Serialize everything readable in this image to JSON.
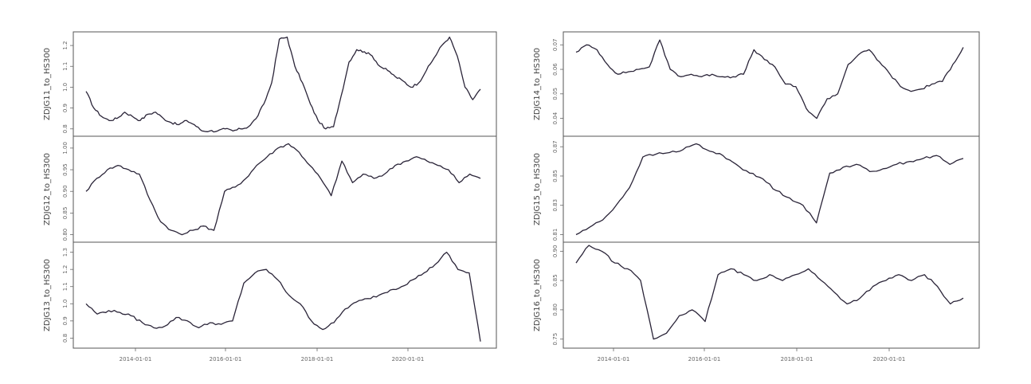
{
  "chart_data": {
    "type": "line",
    "x_ticks": [
      "2014-01-01",
      "2016-01-01",
      "2018-01-01",
      "2020-01-01"
    ],
    "x_range": [
      "2013-05-01",
      "2021-12-31"
    ],
    "columns": [
      {
        "panels": [
          {
            "ylabel": "ZDJG11_to_HS300",
            "y_ticks": [
              "0.8",
              "0.9",
              "1.0",
              "1.1",
              "1.2"
            ],
            "ylim": [
              0.78,
              1.25
            ],
            "values": [
              0.98,
              0.9,
              0.86,
              0.84,
              0.85,
              0.88,
              0.86,
              0.84,
              0.87,
              0.88,
              0.85,
              0.83,
              0.82,
              0.84,
              0.82,
              0.79,
              0.79,
              0.79,
              0.8,
              0.79,
              0.8,
              0.81,
              0.85,
              0.92,
              1.02,
              1.23,
              1.24,
              1.1,
              1.02,
              0.92,
              0.84,
              0.8,
              0.81,
              0.96,
              1.12,
              1.18,
              1.17,
              1.15,
              1.1,
              1.08,
              1.05,
              1.03,
              1.0,
              1.02,
              1.08,
              1.14,
              1.2,
              1.24,
              1.15,
              1.0,
              0.94,
              0.99
            ]
          },
          {
            "ylabel": "ZDJG12_to_HS300",
            "y_ticks": [
              "0.80",
              "0.85",
              "0.90",
              "0.95",
              "1.00"
            ],
            "ylim": [
              0.79,
              1.02
            ],
            "values": [
              0.9,
              0.93,
              0.95,
              0.96,
              0.95,
              0.94,
              0.88,
              0.83,
              0.81,
              0.8,
              0.81,
              0.82,
              0.81,
              0.9,
              0.91,
              0.93,
              0.96,
              0.98,
              1.0,
              1.01,
              0.99,
              0.96,
              0.93,
              0.89,
              0.97,
              0.92,
              0.94,
              0.93,
              0.94,
              0.96,
              0.97,
              0.98,
              0.97,
              0.96,
              0.95,
              0.92,
              0.94,
              0.93
            ]
          },
          {
            "ylabel": "ZDJG13_to_HS300",
            "y_ticks": [
              "0.8",
              "0.9",
              "1.0",
              "1.1",
              "1.2",
              "1.3"
            ],
            "ylim": [
              0.76,
              1.34
            ],
            "values": [
              1.0,
              0.94,
              0.96,
              0.95,
              0.93,
              0.89,
              0.86,
              0.87,
              0.92,
              0.9,
              0.86,
              0.89,
              0.88,
              0.9,
              1.12,
              1.18,
              1.2,
              1.14,
              1.05,
              1.0,
              0.9,
              0.85,
              0.89,
              0.97,
              1.01,
              1.03,
              1.05,
              1.08,
              1.1,
              1.14,
              1.18,
              1.23,
              1.3,
              1.2,
              1.18,
              0.78
            ]
          }
        ]
      },
      {
        "panels": [
          {
            "ylabel": "ZDJG14_to_HS300",
            "y_ticks": [
              "0.04",
              "0.05",
              "0.06",
              "0.07"
            ],
            "ylim": [
              0.034,
              0.074
            ],
            "values": [
              0.067,
              0.07,
              0.068,
              0.062,
              0.058,
              0.059,
              0.06,
              0.061,
              0.072,
              0.06,
              0.057,
              0.058,
              0.057,
              0.058,
              0.057,
              0.057,
              0.058,
              0.068,
              0.064,
              0.061,
              0.054,
              0.053,
              0.044,
              0.04,
              0.048,
              0.05,
              0.062,
              0.066,
              0.068,
              0.063,
              0.058,
              0.053,
              0.051,
              0.052,
              0.054,
              0.055,
              0.062,
              0.069
            ]
          },
          {
            "ylabel": "ZDJG15_to_HS300",
            "y_ticks": [
              "0.81",
              "0.83",
              "0.85",
              "0.87"
            ],
            "ylim": [
              0.807,
              0.875
            ],
            "values": [
              0.81,
              0.815,
              0.82,
              0.83,
              0.842,
              0.863,
              0.865,
              0.866,
              0.868,
              0.872,
              0.867,
              0.864,
              0.858,
              0.852,
              0.848,
              0.84,
              0.835,
              0.83,
              0.818,
              0.852,
              0.856,
              0.858,
              0.853,
              0.855,
              0.858,
              0.86,
              0.862,
              0.864,
              0.858,
              0.862
            ]
          },
          {
            "ylabel": "ZDJG16_to_HS300",
            "y_ticks": [
              "0.75",
              "0.80",
              "0.85",
              "0.90"
            ],
            "ylim": [
              0.74,
              0.91
            ],
            "values": [
              0.88,
              0.91,
              0.9,
              0.88,
              0.87,
              0.85,
              0.75,
              0.76,
              0.79,
              0.8,
              0.78,
              0.86,
              0.87,
              0.86,
              0.85,
              0.86,
              0.85,
              0.86,
              0.87,
              0.85,
              0.83,
              0.81,
              0.82,
              0.84,
              0.85,
              0.86,
              0.85,
              0.86,
              0.84,
              0.81,
              0.82
            ]
          }
        ]
      }
    ]
  }
}
